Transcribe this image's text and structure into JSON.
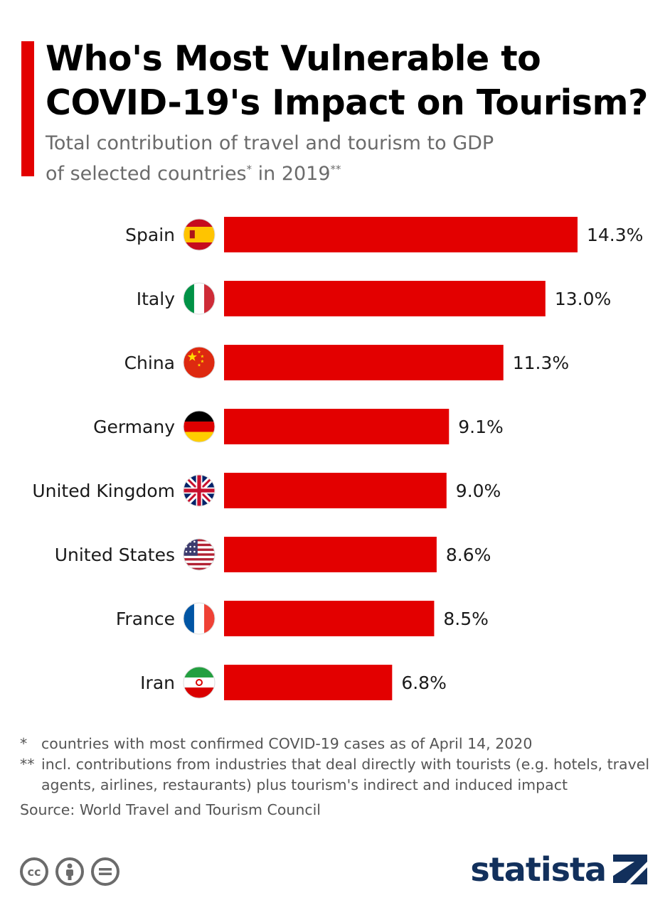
{
  "header": {
    "title_line1": "Who's Most Vulnerable to",
    "title_line2": "COVID-19's Impact on Tourism?",
    "subtitle_line1": "Total contribution of travel and tourism to GDP",
    "subtitle_line2": "of selected countries* in 2019**",
    "accent_color": "#e30000"
  },
  "chart_data": {
    "type": "bar",
    "orientation": "horizontal",
    "categories": [
      "Spain",
      "Italy",
      "China",
      "Germany",
      "United Kingdom",
      "United States",
      "France",
      "Iran"
    ],
    "values": [
      14.3,
      13.0,
      11.3,
      9.1,
      9.0,
      8.6,
      8.5,
      6.8
    ],
    "value_labels": [
      "14.3%",
      "13.0%",
      "11.3%",
      "9.1%",
      "9.0%",
      "8.6%",
      "8.5%",
      "6.8%"
    ],
    "flag_icons": [
      "spain-flag-icon",
      "italy-flag-icon",
      "china-flag-icon",
      "germany-flag-icon",
      "uk-flag-icon",
      "us-flag-icon",
      "france-flag-icon",
      "iran-flag-icon"
    ],
    "bar_color": "#e30000",
    "xlim": [
      0,
      14.3
    ],
    "grid": false
  },
  "footer": {
    "note1_mark": "*",
    "note1_text": "countries with most confirmed COVID-19 cases as of April 14, 2020",
    "note2_mark": "**",
    "note2_text": "incl. contributions from industries that deal directly with tourists (e.g. hotels, travel agents, airlines, restaurants) plus tourism's indirect and induced impact",
    "source": "Source: World Travel and Tourism Council",
    "license_icons": [
      "cc-icon",
      "by-icon",
      "nd-icon"
    ],
    "brand": "statista",
    "brand_color": "#12305c"
  }
}
